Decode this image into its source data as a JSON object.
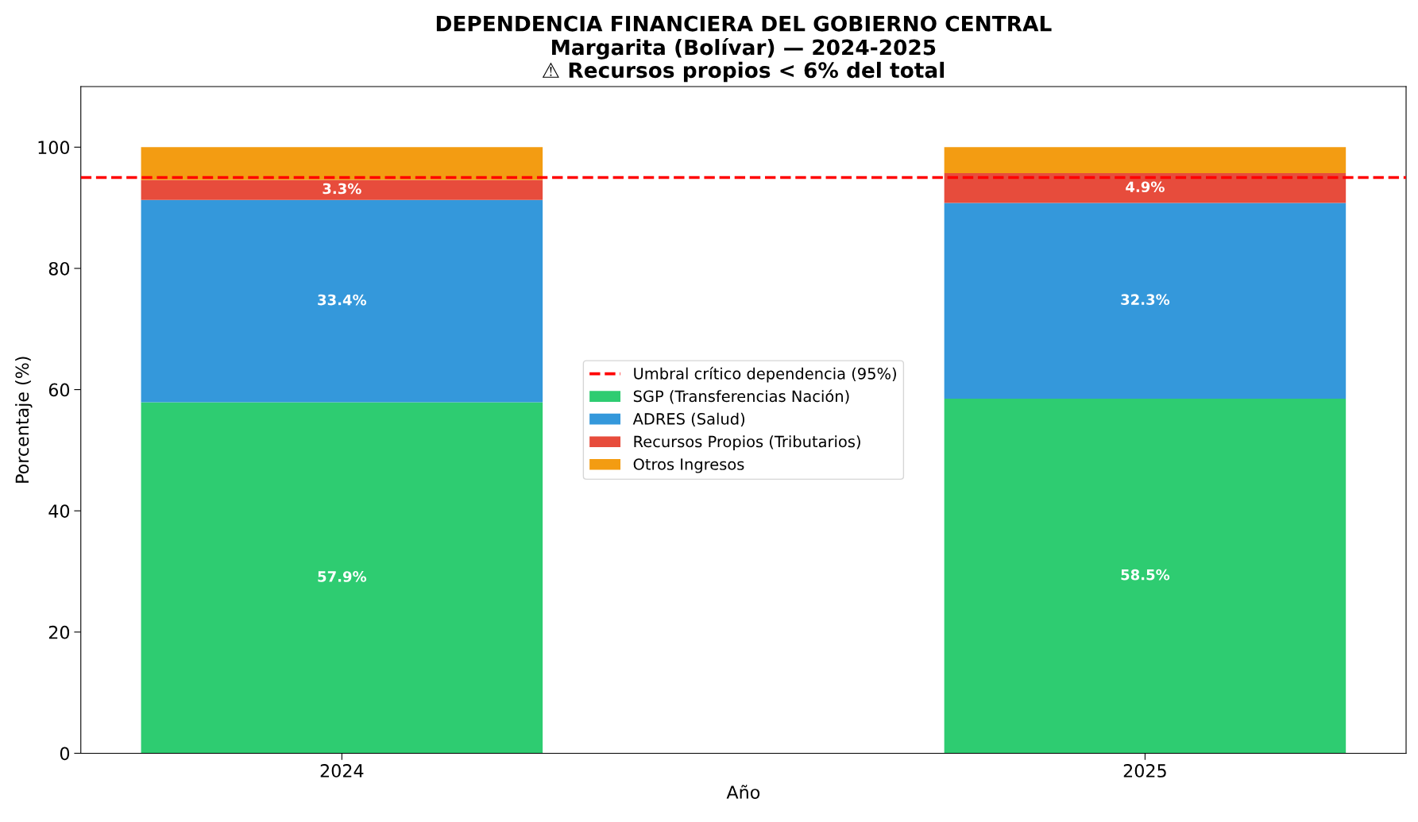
{
  "chart_data": {
    "type": "bar",
    "title": "DEPENDENCIA FINANCIERA DEL GOBIERNO CENTRAL\nMargarita (Bolívar) — 2024-2025\n⚠ Recursos propios < 6% del total",
    "xlabel": "Año",
    "ylabel": "Porcentaje (%)",
    "categories": [
      "2024",
      "2025"
    ],
    "stacked": true,
    "series": [
      {
        "name": "SGP (Transferencias Nación)",
        "color": "#2ecc71",
        "values": [
          57.9,
          58.5
        ],
        "value_labels": [
          "57.9%",
          "58.5%"
        ]
      },
      {
        "name": "ADRES (Salud)",
        "color": "#3498db",
        "values": [
          33.4,
          32.3
        ],
        "value_labels": [
          "33.4%",
          "32.3%"
        ]
      },
      {
        "name": "Recursos Propios (Tributarios)",
        "color": "#e74c3c",
        "values": [
          3.3,
          4.9
        ],
        "value_labels": [
          "3.3%",
          "4.9%"
        ]
      },
      {
        "name": "Otros Ingresos",
        "color": "#f39c12",
        "values": [
          5.4,
          4.3
        ]
      }
    ],
    "ylim": [
      0,
      110
    ],
    "yticks": [
      0,
      20,
      40,
      60,
      80,
      100
    ],
    "ref_lines": [
      {
        "axis": "y",
        "value": 95,
        "label": "Umbral crítico dependencia (95%)",
        "color": "#ff0000",
        "line_style": "dashed"
      }
    ],
    "legend": "center"
  }
}
